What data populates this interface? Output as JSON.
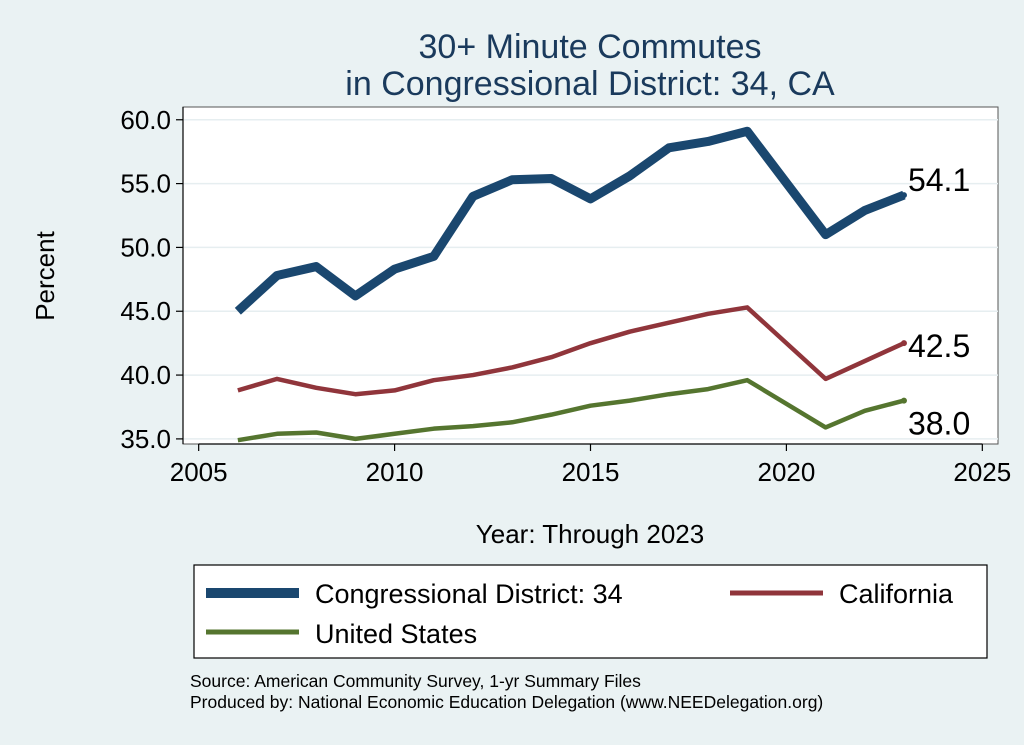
{
  "colors": {
    "background": "#eaf2f3",
    "plot_background": "#ffffff",
    "grid": "#e6eef0",
    "district": "#1a476f",
    "california": "#90353b",
    "united_states": "#55752f"
  },
  "chart_data": {
    "type": "line",
    "title": [
      "30+ Minute Commutes",
      "in Congressional District:  34, CA"
    ],
    "xlabel": "Year: Through 2023",
    "ylabel": "Percent",
    "xlim": [
      2004.6,
      2025.4
    ],
    "ylim": [
      34.6,
      61.0
    ],
    "xticks": [
      2005,
      2010,
      2015,
      2020,
      2025
    ],
    "yticks": [
      35,
      40,
      45,
      50,
      55,
      60
    ],
    "ytick_labels": [
      "35.0",
      "40.0",
      "45.0",
      "50.0",
      "55.0",
      "60.0"
    ],
    "grid": true,
    "legend_position": "bottom",
    "series": [
      {
        "key": "district",
        "name": "Congressional District:  34",
        "end_label": "54.1",
        "x": [
          2006,
          2007,
          2008,
          2009,
          2010,
          2011,
          2012,
          2013,
          2014,
          2015,
          2016,
          2017,
          2018,
          2019,
          2021,
          2022,
          2023
        ],
        "values": [
          45.0,
          47.8,
          48.5,
          46.2,
          48.3,
          49.3,
          54.0,
          55.3,
          55.4,
          53.8,
          55.6,
          57.8,
          58.3,
          59.1,
          51.0,
          52.9,
          54.1
        ]
      },
      {
        "key": "california",
        "name": "California",
        "end_label": "42.5",
        "x": [
          2006,
          2007,
          2008,
          2009,
          2010,
          2011,
          2012,
          2013,
          2014,
          2015,
          2016,
          2017,
          2018,
          2019,
          2021,
          2022,
          2023
        ],
        "values": [
          38.8,
          39.7,
          39.0,
          38.5,
          38.8,
          39.6,
          40.0,
          40.6,
          41.4,
          42.5,
          43.4,
          44.1,
          44.8,
          45.3,
          39.7,
          41.1,
          42.5
        ]
      },
      {
        "key": "united_states",
        "name": "United States",
        "end_label": "38.0",
        "x": [
          2006,
          2007,
          2008,
          2009,
          2010,
          2011,
          2012,
          2013,
          2014,
          2015,
          2016,
          2017,
          2018,
          2019,
          2021,
          2022,
          2023
        ],
        "values": [
          34.9,
          35.4,
          35.5,
          35.0,
          35.4,
          35.8,
          36.0,
          36.3,
          36.9,
          37.6,
          38.0,
          38.5,
          38.9,
          39.6,
          35.9,
          37.2,
          38.0
        ]
      }
    ]
  },
  "source": {
    "line1": "Source: American Community Survey, 1-yr Summary Files",
    "line2": "Produced by: National Economic Education Delegation (www.NEEDelegation.org)"
  }
}
